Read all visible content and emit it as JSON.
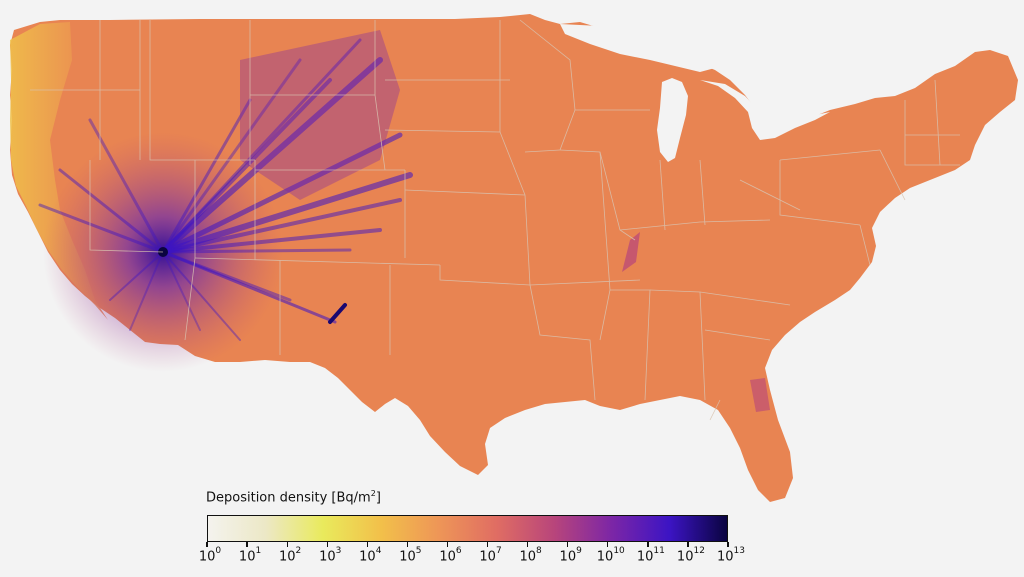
{
  "colorbar": {
    "title": "Deposition density [Bq/m",
    "title_sup": "2",
    "title_end": "]",
    "ticks": [
      {
        "base": "10",
        "exp": "0"
      },
      {
        "base": "10",
        "exp": "1"
      },
      {
        "base": "10",
        "exp": "2"
      },
      {
        "base": "10",
        "exp": "3"
      },
      {
        "base": "10",
        "exp": "4"
      },
      {
        "base": "10",
        "exp": "5"
      },
      {
        "base": "10",
        "exp": "6"
      },
      {
        "base": "10",
        "exp": "7"
      },
      {
        "base": "10",
        "exp": "8"
      },
      {
        "base": "10",
        "exp": "9"
      },
      {
        "base": "10",
        "exp": "10"
      },
      {
        "base": "10",
        "exp": "11"
      },
      {
        "base": "10",
        "exp": "12"
      },
      {
        "base": "10",
        "exp": "13"
      }
    ],
    "colors": [
      "#f4f3ee",
      "#ece8c6",
      "#e9ea5c",
      "#f2c04a",
      "#ee9657",
      "#e06d63",
      "#b8457b",
      "#7c26a6",
      "#3c14c4",
      "#0a0440"
    ]
  },
  "map": {
    "region": "contiguous-united-states",
    "land_color": "#e88452",
    "plume_color": "#3c14c4",
    "coast_color": "#f0c24a",
    "border_color": "#d9c3b0"
  }
}
